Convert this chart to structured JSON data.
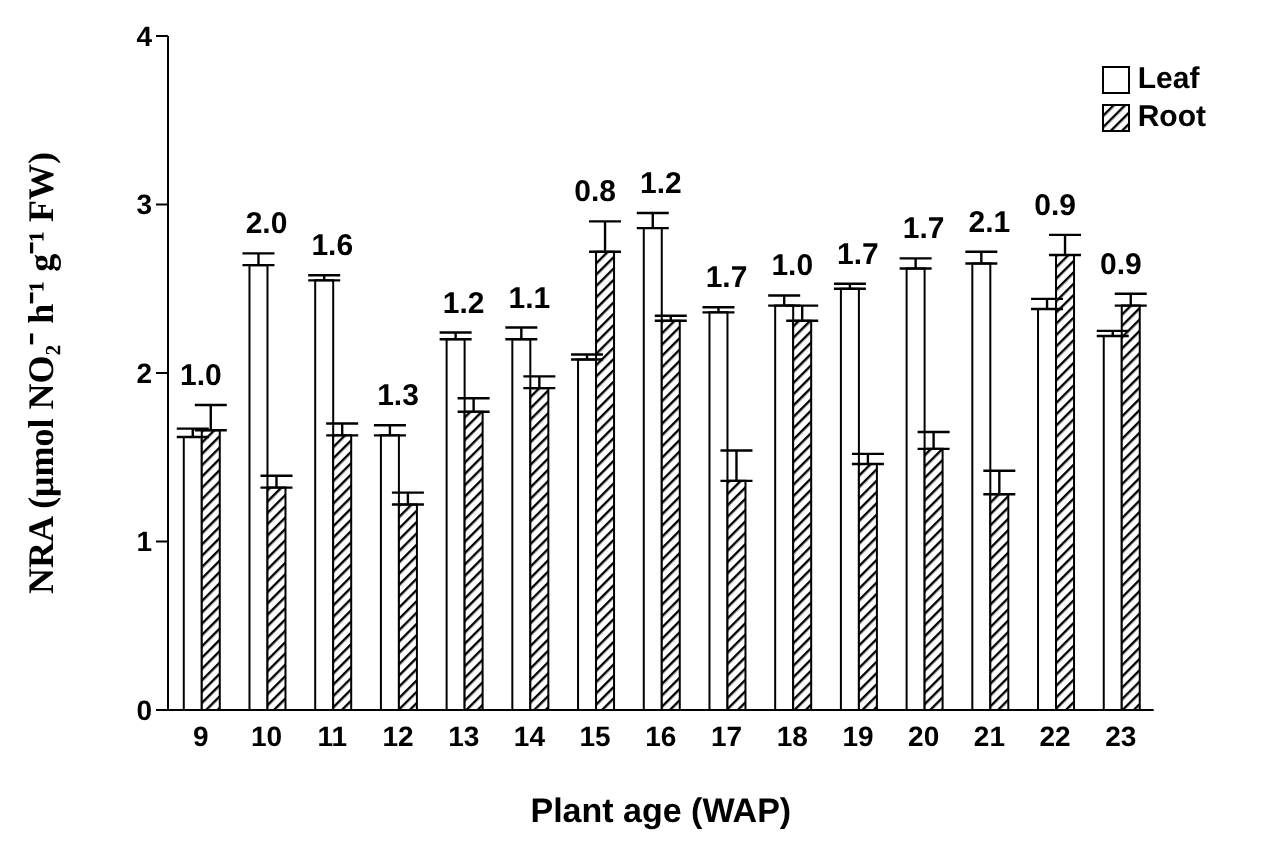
{
  "chart_data": {
    "type": "bar",
    "xlabel": "Plant age (WAP)",
    "ylabel": "NRA (μmol NO₂⁻ h⁻¹ g⁻¹ FW)",
    "categories": [
      "9",
      "10",
      "11",
      "12",
      "13",
      "14",
      "15",
      "16",
      "17",
      "18",
      "19",
      "20",
      "21",
      "22",
      "23"
    ],
    "series": [
      {
        "name": "Leaf",
        "color": "#ffffff",
        "values": [
          1.62,
          2.64,
          2.55,
          1.63,
          2.2,
          2.2,
          2.08,
          2.86,
          2.36,
          2.4,
          2.5,
          2.62,
          2.65,
          2.38,
          2.22
        ],
        "errors": [
          [
            1.62,
            1.67
          ],
          [
            2.64,
            2.71
          ],
          [
            2.55,
            2.58
          ],
          [
            1.63,
            1.69
          ],
          [
            2.2,
            2.24
          ],
          [
            2.2,
            2.27
          ],
          [
            2.08,
            2.11
          ],
          [
            2.86,
            2.95
          ],
          [
            2.36,
            2.39
          ],
          [
            2.4,
            2.46
          ],
          [
            2.5,
            2.53
          ],
          [
            2.62,
            2.68
          ],
          [
            2.65,
            2.72
          ],
          [
            2.38,
            2.44
          ],
          [
            2.22,
            2.25
          ]
        ]
      },
      {
        "name": "Root",
        "color": "#000000",
        "values": [
          1.66,
          1.32,
          1.63,
          1.22,
          1.77,
          1.91,
          2.72,
          2.31,
          1.36,
          2.31,
          1.46,
          1.55,
          1.28,
          2.7,
          2.4
        ],
        "errors": [
          [
            1.66,
            1.81
          ],
          [
            1.32,
            1.39
          ],
          [
            1.63,
            1.7
          ],
          [
            1.22,
            1.29
          ],
          [
            1.77,
            1.85
          ],
          [
            1.91,
            1.98
          ],
          [
            2.72,
            2.9
          ],
          [
            2.31,
            2.34
          ],
          [
            1.36,
            1.54
          ],
          [
            2.31,
            2.4
          ],
          [
            1.46,
            1.52
          ],
          [
            1.55,
            1.65
          ],
          [
            1.28,
            1.42
          ],
          [
            2.7,
            2.82
          ],
          [
            2.4,
            2.47
          ]
        ]
      }
    ],
    "annotations": [
      {
        "text": "1.0",
        "x": "9",
        "y": 1.81
      },
      {
        "text": "2.0",
        "x": "10",
        "y": 2.71
      },
      {
        "text": "1.6",
        "x": "11",
        "y": 2.58
      },
      {
        "text": "1.3",
        "x": "12",
        "y": 1.69
      },
      {
        "text": "1.2",
        "x": "13",
        "y": 2.24
      },
      {
        "text": "1.1",
        "x": "14",
        "y": 2.27
      },
      {
        "text": "0.8",
        "x": "15",
        "y": 2.9
      },
      {
        "text": "1.2",
        "x": "16",
        "y": 2.95
      },
      {
        "text": "1.7",
        "x": "17",
        "y": 2.39
      },
      {
        "text": "1.0",
        "x": "18",
        "y": 2.46
      },
      {
        "text": "1.7",
        "x": "19",
        "y": 2.53
      },
      {
        "text": "1.7",
        "x": "20",
        "y": 2.68
      },
      {
        "text": "2.1",
        "x": "21",
        "y": 2.72
      },
      {
        "text": "0.9",
        "x": "22",
        "y": 2.82
      },
      {
        "text": "0.9",
        "x": "23",
        "y": 2.47
      }
    ],
    "ylim": [
      0,
      4
    ],
    "yticks": [
      0,
      1,
      2,
      3,
      4
    ],
    "grid": false,
    "legend": "top right"
  }
}
